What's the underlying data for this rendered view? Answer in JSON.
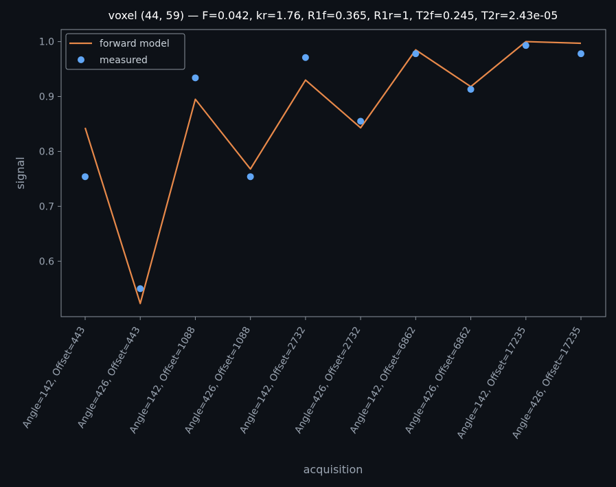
{
  "chart_data": {
    "type": "line",
    "title": "voxel (44, 59) — F=0.042, kr=1.76, R1f=0.365, R1r=1, T2f=0.245, T2r=2.43e-05",
    "xlabel": "acquisition",
    "ylabel": "signal",
    "categories": [
      "Angle=142, Offset=443",
      "Angle=426, Offset=443",
      "Angle=142, Offset=1088",
      "Angle=426, Offset=1088",
      "Angle=142, Offset=2732",
      "Angle=426, Offset=2732",
      "Angle=142, Offset=6862",
      "Angle=426, Offset=6862",
      "Angle=142, Offset=17235",
      "Angle=426, Offset=17235"
    ],
    "series": [
      {
        "name": "forward model",
        "kind": "line",
        "color": "#e8894a",
        "values": [
          0.843,
          0.523,
          0.895,
          0.768,
          0.93,
          0.843,
          0.985,
          0.918,
          1.0,
          0.997
        ]
      },
      {
        "name": "measured",
        "kind": "scatter",
        "color": "#61a6f5",
        "values": [
          0.754,
          0.55,
          0.934,
          0.754,
          0.971,
          0.855,
          0.978,
          0.913,
          0.993,
          0.978
        ]
      }
    ],
    "yticks": [
      "0.6",
      "0.7",
      "0.8",
      "0.9",
      "1.0"
    ],
    "ylim": [
      0.499,
      1.022
    ],
    "grid": false,
    "legend_position": "top-left",
    "colors": {
      "background": "#0d1117",
      "axes_edge": "#8b949e",
      "text": "#9aa4b1"
    }
  }
}
